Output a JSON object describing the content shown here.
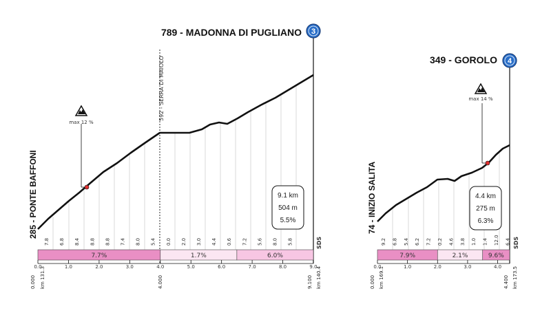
{
  "profile_a": {
    "title": "789 - MADONNA DI PUGLIANO",
    "badge": "3",
    "start_label": "285 - PONTE BAFFONI",
    "mid_label": "592 - SERRA DI MAIOLO",
    "max_grade": "max 12 %",
    "info": {
      "length": "9.1 km",
      "gain": "504 m",
      "avg": "5.5%"
    },
    "grades": [
      "7.8",
      "6.8",
      "8.4",
      "8.8",
      "8.8",
      "7.4",
      "8.0",
      "5.4",
      "0.0",
      "2.0",
      "3.0",
      "4.4",
      "0.6",
      "7.2",
      "5.6",
      "8.0",
      "5.8"
    ],
    "segments": [
      {
        "label": "7.7%",
        "color": "#e98fc4",
        "from": 0,
        "to": 4
      },
      {
        "label": "1.7%",
        "color": "#fbe6f2",
        "from": 4,
        "to": 6.5
      },
      {
        "label": "6.0%",
        "color": "#f7c6e3",
        "from": 6.5,
        "to": 9
      }
    ],
    "axis_ticks": [
      "0.0",
      "1.0",
      "2.0",
      "3.0",
      "4.0",
      "5.0",
      "6.0",
      "7.0",
      "8.0",
      "9.0"
    ],
    "km_left": {
      "dist": "0.000",
      "km": "km 131.3"
    },
    "km_mid": "4.000",
    "km_right": {
      "dist": "9.100",
      "km": "km 140.4"
    },
    "sds": "SDS"
  },
  "profile_b": {
    "title": "349 - GOROLO",
    "badge": "4",
    "start_label": "74 - INIZIO SALITA",
    "max_grade": "max 14 %",
    "info": {
      "length": "4.4 km",
      "gain": "275 m",
      "avg": "6.3%"
    },
    "grades": [
      "9.2",
      "6.8",
      "5.4",
      "6.2",
      "7.2",
      "0.2",
      "4.6",
      "3.8",
      "1.0",
      "1.4",
      "12.0",
      "6.4"
    ],
    "segments": [
      {
        "label": "7.9%",
        "color": "#e98fc4",
        "from": 0,
        "to": 2
      },
      {
        "label": "2.1%",
        "color": "#fbe6f2",
        "from": 2,
        "to": 3.5
      },
      {
        "label": "9.6%",
        "color": "#e98fc4",
        "from": 3.5,
        "to": 4.4
      }
    ],
    "axis_ticks": [
      "0.0",
      "1.0",
      "2.0",
      "3.0",
      "4.0"
    ],
    "km_left": {
      "dist": "0.000",
      "km": "km 169.1"
    },
    "km_right": {
      "dist": "4.400",
      "km": "km 173.5"
    },
    "sds": "SDS"
  },
  "colors": {
    "badge_blue": "#2a6fc9",
    "max_marker": "#e03030"
  }
}
